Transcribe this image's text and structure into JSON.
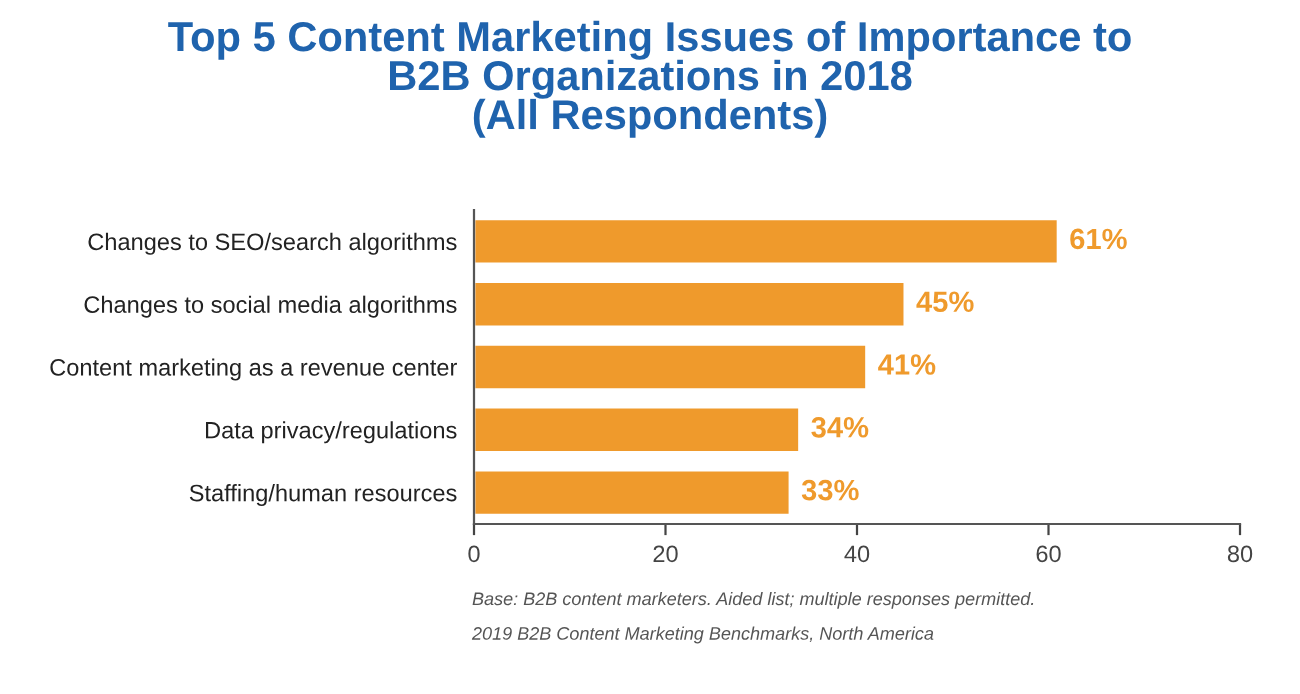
{
  "chart_data": {
    "type": "bar",
    "orientation": "horizontal",
    "title": "Top 5 Content Marketing Issues of Importance to\nB2B Organizations in 2018\n(All Respondents)",
    "categories": [
      "Changes to SEO/search algorithms",
      "Changes to social media algorithms",
      "Content marketing as a revenue center",
      "Data privacy/regulations",
      "Staffing/human resources"
    ],
    "values": [
      61,
      45,
      41,
      34,
      33
    ],
    "value_labels": [
      "61%",
      "45%",
      "41%",
      "34%",
      "33%"
    ],
    "color": "#ef9a2c",
    "xlim": [
      0,
      80
    ],
    "xticks": [
      0,
      20,
      40,
      60,
      80
    ],
    "grid": false,
    "annotations": [
      "Base: B2B content marketers. Aided list; multiple responses permitted.",
      "2019 B2B Content Marketing Benchmarks, North America"
    ]
  }
}
